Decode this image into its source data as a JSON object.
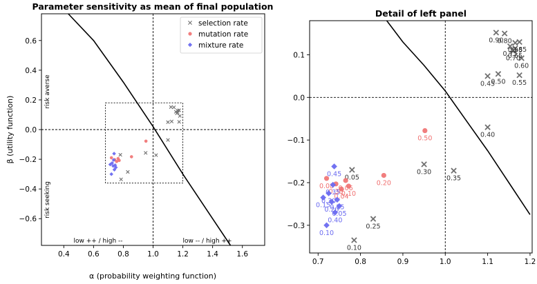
{
  "chart_data": [
    {
      "type": "scatter",
      "title": "Parameter sensitivity as mean of final population",
      "xlabel": "α (probability weighting function)",
      "ylabel": "β (utility function)",
      "xlim": [
        0.25,
        1.75
      ],
      "ylim": [
        -0.78,
        0.78
      ],
      "x_ticks": [
        0.4,
        0.6,
        0.8,
        1.0,
        1.2,
        1.4,
        1.6
      ],
      "x_tick_labels": [
        "0.4",
        "0.6",
        "0.8",
        "1.0",
        "1.2",
        "1.4",
        "1.6"
      ],
      "y_ticks": [
        0.6,
        0.4,
        0.2,
        0.0,
        -0.2,
        -0.4,
        -0.6
      ],
      "y_tick_labels": [
        "0.6",
        "0.4",
        "0.2",
        "0.0",
        "−0.2",
        "−0.4",
        "−0.6"
      ],
      "legend_position": "top-right",
      "annotations": {
        "risk_averse": "risk averse",
        "risk_seeking": "risk seeking",
        "low_high_left": "low ++ / high --",
        "low_high_right": "low -- / high ++"
      },
      "reference_lines": {
        "x": 1.0,
        "y": 0.0
      },
      "detail_box": {
        "x": [
          0.68,
          1.2
        ],
        "y": [
          -0.36,
          0.18
        ]
      },
      "curve": [
        [
          0.43,
          0.78
        ],
        [
          0.6,
          0.6
        ],
        [
          0.8,
          0.32
        ],
        [
          1.0,
          0.02
        ],
        [
          1.2,
          -0.3
        ],
        [
          1.4,
          -0.6
        ],
        [
          1.52,
          -0.78
        ]
      ]
    },
    {
      "type": "scatter",
      "title": "Detail of left panel",
      "xlim": [
        0.68,
        1.205
      ],
      "ylim": [
        -0.365,
        0.18
      ],
      "x_ticks": [
        0.7,
        0.8,
        0.9,
        1.0,
        1.1,
        1.2
      ],
      "x_tick_labels": [
        "0.7",
        "0.8",
        "0.9",
        "1.0",
        "1.1",
        "1.2"
      ],
      "y_ticks": [
        0.1,
        0.0,
        -0.1,
        -0.2,
        -0.3
      ],
      "y_tick_labels": [
        "0.1",
        "0.0",
        "−0.1",
        "−0.2",
        "−0.3"
      ],
      "reference_lines": {
        "x": 1.0,
        "y": 0.0
      },
      "curve": [
        [
          0.862,
          0.18
        ],
        [
          0.9,
          0.13
        ],
        [
          0.95,
          0.075
        ],
        [
          1.0,
          0.015
        ],
        [
          1.05,
          -0.055
        ],
        [
          1.1,
          -0.125
        ],
        [
          1.15,
          -0.2
        ],
        [
          1.2,
          -0.275
        ]
      ]
    }
  ],
  "series": [
    {
      "name": "selection rate",
      "color": "#707070",
      "marker": "x",
      "points": [
        {
          "x": 1.1,
          "y": 0.05,
          "label": "0.45"
        },
        {
          "x": 1.125,
          "y": 0.055,
          "label": "0.50"
        },
        {
          "x": 1.175,
          "y": 0.052,
          "label": "0.55"
        },
        {
          "x": 1.18,
          "y": 0.092,
          "label": "0.60"
        },
        {
          "x": 1.165,
          "y": 0.115,
          "label": "0.65"
        },
        {
          "x": 1.16,
          "y": 0.11,
          "label": "0.70"
        },
        {
          "x": 1.153,
          "y": 0.12,
          "label": "0.75"
        },
        {
          "x": 1.14,
          "y": 0.15,
          "label": "0.80"
        },
        {
          "x": 1.175,
          "y": 0.13,
          "label": "0.85"
        },
        {
          "x": 1.12,
          "y": 0.152,
          "label": "0.90"
        },
        {
          "x": 1.165,
          "y": 0.128,
          "label": "0.95"
        },
        {
          "x": 1.1,
          "y": -0.07,
          "label": "0.40"
        },
        {
          "x": 1.02,
          "y": -0.172,
          "label": "0.35"
        },
        {
          "x": 0.95,
          "y": -0.157,
          "label": "0.30"
        },
        {
          "x": 0.83,
          "y": -0.285,
          "label": "0.25"
        },
        {
          "x": 0.785,
          "y": -0.335,
          "label": "0.10"
        },
        {
          "x": 0.78,
          "y": -0.17,
          "label": "0.05"
        }
      ]
    },
    {
      "name": "mutation rate",
      "color": "#f07070",
      "marker": "o",
      "points": [
        {
          "x": 0.952,
          "y": -0.078,
          "label": "0.50"
        },
        {
          "x": 0.855,
          "y": -0.183,
          "label": "0.20"
        },
        {
          "x": 0.72,
          "y": -0.19,
          "label": "0.08"
        },
        {
          "x": 0.765,
          "y": -0.195,
          "label": "0.06"
        },
        {
          "x": 0.772,
          "y": -0.208,
          "label": "0.10"
        },
        {
          "x": 0.755,
          "y": -0.215,
          "label": "0.04"
        },
        {
          "x": 0.742,
          "y": -0.203,
          "label": "0.30"
        }
      ]
    },
    {
      "name": "mixture rate",
      "color": "#6a6af0",
      "marker": "D",
      "points": [
        {
          "x": 0.738,
          "y": -0.162,
          "label": "0.45"
        },
        {
          "x": 0.712,
          "y": -0.235,
          "label": "0.15"
        },
        {
          "x": 0.735,
          "y": -0.205,
          "label": "0.35"
        },
        {
          "x": 0.725,
          "y": -0.225,
          "label": "0.30"
        },
        {
          "x": 0.732,
          "y": -0.245,
          "label": "0.20"
        },
        {
          "x": 0.745,
          "y": -0.24,
          "label": "0.25"
        },
        {
          "x": 0.75,
          "y": -0.255,
          "label": "0.05"
        },
        {
          "x": 0.74,
          "y": -0.27,
          "label": "0.40"
        },
        {
          "x": 0.72,
          "y": -0.3,
          "label": "0.10"
        }
      ]
    }
  ]
}
